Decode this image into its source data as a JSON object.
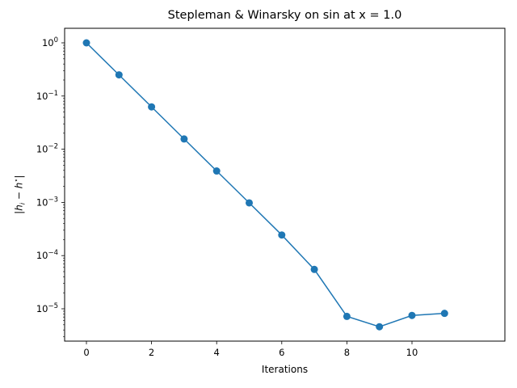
{
  "chart_data": {
    "type": "line",
    "title": "Stepleman & Winarsky on sin at x = 1.0",
    "xlabel": "Iterations",
    "ylabel": "|h_i − h*|",
    "yscale": "log",
    "x": [
      0,
      1,
      2,
      3,
      4,
      5,
      6,
      7,
      8,
      9,
      10,
      11
    ],
    "series": [
      {
        "name": "|h_i - h*|",
        "color": "#1f77b4",
        "marker": "o",
        "values": [
          1.0,
          0.25,
          0.0625,
          0.0156,
          0.0039,
          0.00098,
          0.000244,
          5.5e-05,
          7.2e-06,
          4.6e-06,
          7.5e-06,
          8.2e-06
        ]
      }
    ],
    "xticks": [
      0,
      2,
      4,
      6,
      8,
      10
    ],
    "yticks": [
      "10^0",
      "10^-1",
      "10^-2",
      "10^-3",
      "10^-4",
      "10^-5"
    ],
    "xlim": [
      -0.55,
      11.55
    ],
    "ylim": [
      2.4e-06,
      1.9
    ],
    "grid": false,
    "legend": false
  }
}
